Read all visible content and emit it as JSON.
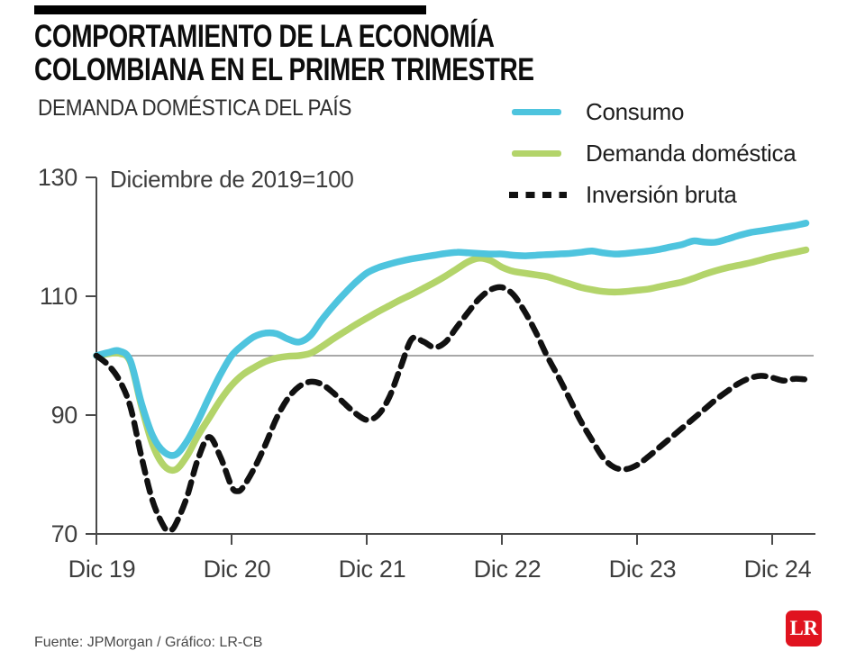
{
  "header": {
    "title_line1": "COMPORTAMIENTO DE LA ECONOMÍA",
    "title_line2": "COLOMBIANA EN EL PRIMER TRIMESTRE",
    "subtitle": "DEMANDA DOMÉSTICA DEL PAÍS"
  },
  "legend": [
    {
      "label": "Consumo",
      "color": "#4ec4de",
      "style": "solid"
    },
    {
      "label": "Demanda doméstica",
      "color": "#b3d46a",
      "style": "solid"
    },
    {
      "label": "Inversión bruta",
      "color": "#111111",
      "style": "dashed"
    }
  ],
  "footer": {
    "credit": "Fuente: JPMorgan / Gráfico: LR-CB",
    "logo_text": "LR",
    "logo_color": "#e0131f"
  },
  "chart_data": {
    "type": "line",
    "title": "DEMANDA DOMÉSTICA DEL PAÍS",
    "note": "Diciembre de 2019=100",
    "ylim": [
      70,
      130
    ],
    "yticks": [
      130,
      110,
      90,
      70
    ],
    "baseline": 100,
    "baseline_color": "#8c8c8c",
    "axis_color": "#4a4a4a",
    "grid": false,
    "legend_position": "top-right",
    "x_unit": "months since Dec 2019",
    "xticks": [
      {
        "m": 0,
        "label": "Dic 19"
      },
      {
        "m": 12,
        "label": "Dic 20"
      },
      {
        "m": 24,
        "label": "Dic 21"
      },
      {
        "m": 36,
        "label": "Dic 22"
      },
      {
        "m": 48,
        "label": "Dic 23"
      },
      {
        "m": 60,
        "label": "Dic 24"
      }
    ],
    "series": [
      {
        "name": "Demanda doméstica",
        "color": "#b3d46a",
        "width": 7.5,
        "dash": "",
        "points": [
          [
            0,
            100
          ],
          [
            1,
            100.3
          ],
          [
            2,
            100.4
          ],
          [
            3,
            99
          ],
          [
            4,
            91.5
          ],
          [
            5,
            85
          ],
          [
            6,
            81.5
          ],
          [
            7,
            80.8
          ],
          [
            8,
            83
          ],
          [
            9,
            86.5
          ],
          [
            10,
            89.5
          ],
          [
            11,
            92.5
          ],
          [
            12,
            95
          ],
          [
            13,
            96.8
          ],
          [
            14,
            98
          ],
          [
            15,
            99
          ],
          [
            16,
            99.6
          ],
          [
            17,
            99.9
          ],
          [
            18,
            100
          ],
          [
            19,
            100.4
          ],
          [
            20,
            101.5
          ],
          [
            21,
            102.8
          ],
          [
            22,
            104
          ],
          [
            23,
            105.2
          ],
          [
            24,
            106.3
          ],
          [
            25,
            107.4
          ],
          [
            26,
            108.4
          ],
          [
            27,
            109.4
          ],
          [
            28,
            110.3
          ],
          [
            29,
            111.3
          ],
          [
            30,
            112.3
          ],
          [
            31,
            113.4
          ],
          [
            32,
            114.6
          ],
          [
            33,
            115.8
          ],
          [
            34,
            116.4
          ],
          [
            35,
            116
          ],
          [
            36,
            114.9
          ],
          [
            37,
            114.2
          ],
          [
            38,
            113.9
          ],
          [
            39,
            113.6
          ],
          [
            40,
            113.3
          ],
          [
            41,
            112.7
          ],
          [
            42,
            112.1
          ],
          [
            43,
            111.5
          ],
          [
            44,
            111.1
          ],
          [
            45,
            110.8
          ],
          [
            46,
            110.7
          ],
          [
            47,
            110.8
          ],
          [
            48,
            111
          ],
          [
            49,
            111.2
          ],
          [
            50,
            111.6
          ],
          [
            51,
            112
          ],
          [
            52,
            112.4
          ],
          [
            53,
            113
          ],
          [
            54,
            113.7
          ],
          [
            55,
            114.3
          ],
          [
            56,
            114.8
          ],
          [
            57,
            115.2
          ],
          [
            58,
            115.6
          ],
          [
            59,
            116.1
          ],
          [
            60,
            116.6
          ],
          [
            61,
            117
          ],
          [
            62,
            117.4
          ],
          [
            63,
            117.8
          ]
        ]
      },
      {
        "name": "Consumo",
        "color": "#4ec4de",
        "width": 7.5,
        "dash": "",
        "points": [
          [
            0,
            100
          ],
          [
            1,
            100.5
          ],
          [
            2,
            100.8
          ],
          [
            3,
            99.2
          ],
          [
            4,
            92
          ],
          [
            5,
            86.5
          ],
          [
            6,
            83.8
          ],
          [
            7,
            83.3
          ],
          [
            8,
            85.5
          ],
          [
            9,
            89
          ],
          [
            10,
            93
          ],
          [
            11,
            96.8
          ],
          [
            12,
            100
          ],
          [
            13,
            101.8
          ],
          [
            14,
            103.2
          ],
          [
            15,
            103.8
          ],
          [
            16,
            103.7
          ],
          [
            17,
            102.8
          ],
          [
            18,
            102.3
          ],
          [
            19,
            103.4
          ],
          [
            20,
            106
          ],
          [
            21,
            108.3
          ],
          [
            22,
            110.4
          ],
          [
            23,
            112.3
          ],
          [
            24,
            113.9
          ],
          [
            25,
            114.8
          ],
          [
            26,
            115.4
          ],
          [
            27,
            115.9
          ],
          [
            28,
            116.3
          ],
          [
            29,
            116.6
          ],
          [
            30,
            116.9
          ],
          [
            31,
            117.2
          ],
          [
            32,
            117.4
          ],
          [
            33,
            117.3
          ],
          [
            34,
            117.2
          ],
          [
            35,
            117.1
          ],
          [
            36,
            117.1
          ],
          [
            37,
            116.9
          ],
          [
            38,
            116.8
          ],
          [
            39,
            116.9
          ],
          [
            40,
            117
          ],
          [
            41,
            117.1
          ],
          [
            42,
            117.2
          ],
          [
            43,
            117.4
          ],
          [
            44,
            117.6
          ],
          [
            45,
            117.3
          ],
          [
            46,
            117.1
          ],
          [
            47,
            117.2
          ],
          [
            48,
            117.4
          ],
          [
            49,
            117.6
          ],
          [
            50,
            117.9
          ],
          [
            51,
            118.3
          ],
          [
            52,
            118.7
          ],
          [
            53,
            119.3
          ],
          [
            54,
            119.1
          ],
          [
            55,
            119.1
          ],
          [
            56,
            119.6
          ],
          [
            57,
            120.2
          ],
          [
            58,
            120.7
          ],
          [
            59,
            121
          ],
          [
            60,
            121.3
          ],
          [
            61,
            121.6
          ],
          [
            62,
            121.9
          ],
          [
            63,
            122.3
          ]
        ]
      },
      {
        "name": "Inversión bruta",
        "color": "#111111",
        "width": 6.5,
        "dash": "13 9",
        "points": [
          [
            0,
            100
          ],
          [
            1,
            98.5
          ],
          [
            2,
            96
          ],
          [
            3,
            91.5
          ],
          [
            4,
            83
          ],
          [
            5,
            75.5
          ],
          [
            6,
            71.2
          ],
          [
            6.5,
            70.6
          ],
          [
            7,
            71.5
          ],
          [
            8,
            76
          ],
          [
            9,
            82.5
          ],
          [
            10,
            86.3
          ],
          [
            11,
            83
          ],
          [
            12,
            78
          ],
          [
            12.5,
            77.2
          ],
          [
            13,
            77.8
          ],
          [
            14,
            81
          ],
          [
            15,
            85
          ],
          [
            16,
            89.5
          ],
          [
            17,
            92.8
          ],
          [
            18,
            94.8
          ],
          [
            19,
            95.6
          ],
          [
            20,
            95.2
          ],
          [
            21,
            93.8
          ],
          [
            22,
            92
          ],
          [
            23,
            90.3
          ],
          [
            24,
            89.2
          ],
          [
            25,
            90
          ],
          [
            26,
            93
          ],
          [
            27,
            98
          ],
          [
            28,
            102.8
          ],
          [
            29,
            102.4
          ],
          [
            30,
            101.4
          ],
          [
            31,
            102.3
          ],
          [
            32,
            104.8
          ],
          [
            33,
            107.3
          ],
          [
            34,
            109.6
          ],
          [
            35,
            111.1
          ],
          [
            36,
            111.5
          ],
          [
            37,
            110.3
          ],
          [
            38,
            107.5
          ],
          [
            39,
            104
          ],
          [
            40,
            100
          ],
          [
            41,
            96.5
          ],
          [
            42,
            92.8
          ],
          [
            43,
            89
          ],
          [
            44,
            85.8
          ],
          [
            45,
            82.8
          ],
          [
            46,
            81.2
          ],
          [
            47,
            80.9
          ],
          [
            48,
            81.6
          ],
          [
            49,
            83
          ],
          [
            50,
            84.6
          ],
          [
            51,
            86.2
          ],
          [
            52,
            87.8
          ],
          [
            53,
            89.4
          ],
          [
            54,
            91
          ],
          [
            55,
            92.6
          ],
          [
            56,
            94
          ],
          [
            57,
            95.3
          ],
          [
            58,
            96.2
          ],
          [
            59,
            96.6
          ],
          [
            60,
            96.3
          ],
          [
            61,
            95.8
          ],
          [
            62,
            96.1
          ],
          [
            63,
            96
          ]
        ]
      }
    ]
  }
}
